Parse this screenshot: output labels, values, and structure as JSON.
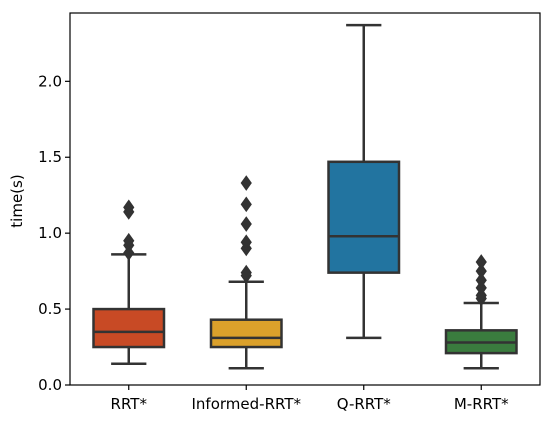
{
  "chart_data": {
    "type": "box",
    "title": "",
    "xlabel": "",
    "ylabel": "time(s)",
    "ylim": [
      0,
      2.45
    ],
    "yticks": [
      0.0,
      0.5,
      1.0,
      1.5,
      2.0
    ],
    "ytick_labels": [
      "0.0",
      "0.5",
      "1.0",
      "1.5",
      "2.0"
    ],
    "grid": false,
    "legend": "none",
    "categories": [
      "RRT*",
      "Informed-RRT*",
      "Q-RRT*",
      "M-RRT*"
    ],
    "boxes": [
      {
        "category": "RRT*",
        "whisker_low": 0.14,
        "q1": 0.25,
        "median": 0.35,
        "q3": 0.5,
        "whisker_high": 0.86,
        "outliers": [
          0.87,
          0.92,
          0.95,
          1.14,
          1.17
        ],
        "color": "#c84a25"
      },
      {
        "category": "Informed-RRT*",
        "whisker_low": 0.11,
        "q1": 0.25,
        "median": 0.31,
        "q3": 0.43,
        "whisker_high": 0.68,
        "outliers": [
          0.72,
          0.74,
          0.9,
          0.94,
          1.06,
          1.19,
          1.33
        ],
        "color": "#dba12b"
      },
      {
        "category": "Q-RRT*",
        "whisker_low": 0.31,
        "q1": 0.74,
        "median": 0.98,
        "q3": 1.47,
        "whisker_high": 2.37,
        "outliers": [],
        "color": "#2274a0"
      },
      {
        "category": "M-RRT*",
        "whisker_low": 0.11,
        "q1": 0.21,
        "median": 0.28,
        "q3": 0.36,
        "whisker_high": 0.54,
        "outliers": [
          0.57,
          0.59,
          0.64,
          0.69,
          0.75,
          0.81
        ],
        "color": "#3a7c3e"
      }
    ],
    "axis_color": "#000000",
    "line_color": "#333333"
  }
}
